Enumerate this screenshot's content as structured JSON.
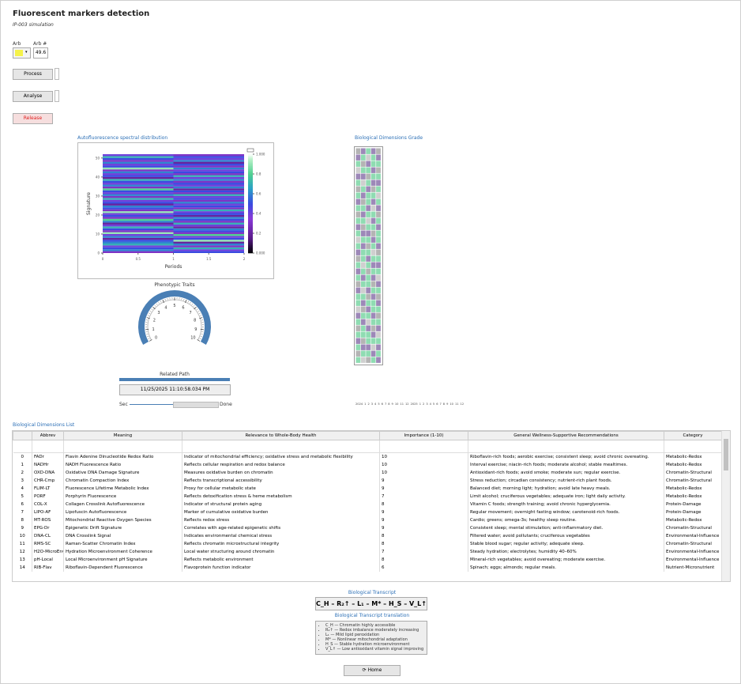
{
  "header": {
    "title": "Fluorescent markers detection",
    "subtitle": "IP-003 simulation"
  },
  "controls": {
    "arb_label": "Arb",
    "arb_num_label": "Arb #",
    "arb_value": "49.6",
    "process": "Process",
    "analyse": "Analyse",
    "release": "Release"
  },
  "heatmap": {
    "type": "heatmap",
    "title": "Autofluorescence spectral distribution",
    "ylabel": "Signature",
    "xlabel": "Periods",
    "xlim": [
      0,
      2
    ],
    "xticks": [
      0,
      0.5,
      1,
      1.5,
      2
    ],
    "ylim": [
      0,
      52
    ],
    "yticks": [
      0,
      10,
      20,
      30,
      40,
      50
    ],
    "clim": [
      0,
      1
    ],
    "cticks": [
      {
        "value": 0,
        "label": "0.000"
      },
      0.2,
      0.4,
      0.6,
      0.8,
      {
        "value": 1,
        "label": "1.000"
      }
    ],
    "values": [
      [
        0.3,
        0.5
      ],
      [
        0.6,
        0.4
      ],
      [
        0.5,
        0.7
      ],
      [
        0.4,
        0.3
      ],
      [
        0.7,
        0.6
      ],
      [
        0.6,
        0.2
      ],
      [
        0.5,
        0.9
      ],
      [
        0.2,
        0.5
      ],
      [
        0.6,
        0.4
      ],
      [
        0.4,
        0.8
      ],
      [
        0.9,
        0.3
      ],
      [
        0.3,
        0.5
      ],
      [
        0.5,
        0.6
      ],
      [
        0.7,
        0.2
      ],
      [
        0.4,
        0.4
      ],
      [
        0.2,
        0.7
      ],
      [
        0.6,
        0.3
      ],
      [
        0.8,
        0.5
      ],
      [
        0.3,
        0.6
      ],
      [
        0.5,
        0.2
      ],
      [
        0.4,
        0.5
      ],
      [
        0.9,
        0.4
      ],
      [
        0.3,
        0.7
      ],
      [
        0.5,
        0.3
      ],
      [
        0.6,
        0.5
      ],
      [
        0.2,
        0.4
      ],
      [
        0.5,
        0.6
      ],
      [
        0.4,
        0.3
      ],
      [
        0.7,
        0.5
      ],
      [
        0.3,
        0.4
      ],
      [
        0.6,
        0.7
      ],
      [
        0.4,
        0.3
      ],
      [
        0.5,
        0.5
      ],
      [
        0.8,
        0.2
      ],
      [
        0.3,
        0.6
      ],
      [
        0.6,
        0.4
      ],
      [
        0.4,
        0.5
      ],
      [
        0.5,
        0.3
      ],
      [
        0.7,
        0.6
      ],
      [
        0.2,
        0.4
      ],
      [
        0.5,
        0.7
      ],
      [
        0.4,
        0.3
      ],
      [
        0.6,
        0.5
      ],
      [
        0.3,
        0.4
      ],
      [
        0.9,
        0.6
      ],
      [
        0.5,
        0.3
      ],
      [
        0.4,
        0.5
      ],
      [
        0.6,
        0.2
      ],
      [
        0.3,
        0.6
      ],
      [
        0.5,
        0.4
      ],
      [
        0.7,
        0.5
      ],
      [
        0.4,
        0.3
      ]
    ]
  },
  "gauge": {
    "title": "Phenotypic Traits",
    "ticks": [
      0,
      1,
      2,
      3,
      4,
      5,
      6,
      7,
      8,
      9,
      10
    ],
    "range": [
      0,
      10
    ]
  },
  "path": {
    "title": "Related Path",
    "timestamp": "11/25/2025 11:10:58.034 PM",
    "start": "Sec",
    "end": "Done"
  },
  "grade": {
    "title": "Biological Dimensions Grade",
    "colors": [
      "#9d88b8",
      "#8fdcb2",
      "#b4b4b4",
      "#cfcfcf"
    ],
    "values": [
      [
        2,
        0,
        1,
        0,
        2
      ],
      [
        0,
        1,
        3,
        1,
        0
      ],
      [
        1,
        2,
        0,
        1,
        1
      ],
      [
        3,
        1,
        1,
        0,
        2
      ],
      [
        0,
        0,
        2,
        1,
        1
      ],
      [
        1,
        3,
        1,
        0,
        0
      ],
      [
        2,
        1,
        0,
        2,
        1
      ],
      [
        1,
        0,
        1,
        1,
        3
      ],
      [
        0,
        2,
        1,
        0,
        1
      ],
      [
        1,
        1,
        0,
        3,
        0
      ],
      [
        2,
        0,
        1,
        1,
        2
      ],
      [
        1,
        1,
        3,
        0,
        1
      ],
      [
        0,
        2,
        1,
        1,
        0
      ],
      [
        1,
        0,
        0,
        2,
        1
      ],
      [
        3,
        1,
        1,
        0,
        1
      ],
      [
        1,
        0,
        2,
        1,
        0
      ],
      [
        0,
        1,
        1,
        3,
        2
      ],
      [
        2,
        1,
        0,
        1,
        1
      ],
      [
        1,
        3,
        1,
        0,
        0
      ],
      [
        0,
        1,
        2,
        1,
        1
      ],
      [
        1,
        0,
        1,
        0,
        3
      ],
      [
        2,
        1,
        1,
        2,
        0
      ],
      [
        0,
        3,
        0,
        1,
        1
      ],
      [
        1,
        1,
        2,
        0,
        2
      ],
      [
        1,
        0,
        1,
        1,
        0
      ],
      [
        3,
        2,
        0,
        1,
        1
      ],
      [
        0,
        1,
        1,
        0,
        2
      ],
      [
        1,
        0,
        3,
        1,
        1
      ],
      [
        2,
        1,
        0,
        2,
        0
      ],
      [
        1,
        1,
        1,
        0,
        3
      ],
      [
        0,
        2,
        1,
        1,
        1
      ],
      [
        1,
        0,
        0,
        3,
        0
      ],
      [
        2,
        1,
        1,
        0,
        1
      ],
      [
        1,
        3,
        2,
        1,
        0
      ]
    ],
    "timeline": [
      "2024",
      "1",
      "2",
      "3",
      "4",
      "5",
      "6",
      "7",
      "8",
      "9",
      "10",
      "11",
      "12",
      "2025",
      "1",
      "2",
      "3",
      "4",
      "5",
      "6",
      "7",
      "8",
      "9",
      "10",
      "11",
      "12"
    ]
  },
  "table": {
    "title": "Biological Dimensions List",
    "columns": [
      "Abbrev",
      "Meaning",
      "Relevance to Whole-Body Health",
      "Importance (1-10)",
      "General Wellness-Supportive Recommendations",
      "Category"
    ],
    "rows": [
      [
        0,
        "FADr",
        "Flavin Adenine Dinucleotide Redox Ratio",
        "Indicator of mitochondrial efficiency; oxidative stress and metabolic flexibility",
        "10",
        "Riboflavin-rich foods; aerobic exercise; consistent sleep; avoid chronic overeating.",
        "Metabolic-Redox"
      ],
      [
        1,
        "NADHr",
        "NADH Fluorescence Ratio",
        "Reflects cellular respiration and redox balance",
        "10",
        "Interval exercise; niacin-rich foods; moderate alcohol; stable mealtimes.",
        "Metabolic-Redox"
      ],
      [
        2,
        "OXD-DNA",
        "Oxidative DNA Damage Signature",
        "Measures oxidative burden on chromatin",
        "10",
        "Antioxidant-rich foods; avoid smoke; moderate sun; regular exercise.",
        "Chromatin-Structural"
      ],
      [
        3,
        "CHR-Cmp",
        "Chromatin Compaction Index",
        "Reflects transcriptional accessibility",
        "9",
        "Stress reduction; circadian consistency; nutrient-rich plant foods.",
        "Chromatin-Structural"
      ],
      [
        4,
        "FLIM-LT",
        "Fluorescence Lifetime Metabolic Index",
        "Proxy for cellular metabolic state",
        "9",
        "Balanced diet; morning light; hydration; avoid late heavy meals.",
        "Metabolic-Redox"
      ],
      [
        5,
        "PORF",
        "Porphyrin Fluorescence",
        "Reflects detoxification stress & heme metabolism",
        "7",
        "Limit alcohol; cruciferous vegetables; adequate iron; light daily activity.",
        "Metabolic-Redox"
      ],
      [
        6,
        "COL-X",
        "Collagen Crosslink Autofluorescence",
        "Indicator of structural protein aging",
        "8",
        "Vitamin C foods; strength training; avoid chronic hyperglycemia.",
        "Protein-Damage"
      ],
      [
        7,
        "LIPO-AF",
        "Lipofuscin Autofluorescence",
        "Marker of cumulative oxidative burden",
        "9",
        "Regular movement; overnight fasting window; carotenoid-rich foods.",
        "Protein-Damage"
      ],
      [
        8,
        "MT-ROS",
        "Mitochondrial Reactive Oxygen Species",
        "Reflects redox stress",
        "9",
        "Cardio; greens; omega-3s; healthy sleep routine.",
        "Metabolic-Redox"
      ],
      [
        9,
        "EPG-Dr",
        "Epigenetic Drift Signature",
        "Correlates with age-related epigenetic shifts",
        "9",
        "Consistent sleep; mental stimulation; anti-inflammatory diet.",
        "Chromatin-Structural"
      ],
      [
        10,
        "DNA-CL",
        "DNA Crosslink Signal",
        "Indicates environmental chemical stress",
        "8",
        "Filtered water; avoid pollutants; cruciferous vegetables",
        "Environmental-Influence"
      ],
      [
        11,
        "RMS-SC",
        "Raman-Scatter Chromatin Index",
        "Reflects chromatin microstructural integrity",
        "8",
        "Stable blood sugar; regular activity; adequate sleep.",
        "Chromatin-Structural"
      ],
      [
        12,
        "H2O-MicroEnv",
        "Hydration Microenvironment Coherence",
        "Local water structuring around chromatin",
        "7",
        "Steady hydration; electrolytes; humidity 40–60%",
        "Environmental-Influence"
      ],
      [
        13,
        "pH-Local",
        "Local Microenvironment pH Signature",
        "Reflects metabolic environment",
        "8",
        "Mineral-rich vegetables; avoid overeating; moderate exercise.",
        "Environmental-Influence"
      ],
      [
        14,
        "RIB-Flav",
        "Riboflavin-Dependent Fluorescence",
        "Flavoprotein function indicator",
        "6",
        "Spinach; eggs; almonds; regular meals.",
        "Nutrient-Micronutrient"
      ]
    ]
  },
  "transcript": {
    "title": "Biological Transcript",
    "code": "C_H – R₂↑ – L₁ – M* – H_S – V_L↑",
    "translation_title": "Biological Transcript translation",
    "items": [
      "C_H — Chromatin highly accessible",
      "R₂↑ — Redox imbalance moderately increasing",
      "L₁ — Mild lipid peroxidation",
      "M* — Nonlinear mitochondrial adaptation",
      "H_S — Stable hydration microenvironment",
      "V_L↑ — Low antioxidant vitamin signal improving"
    ]
  },
  "home": "Home"
}
